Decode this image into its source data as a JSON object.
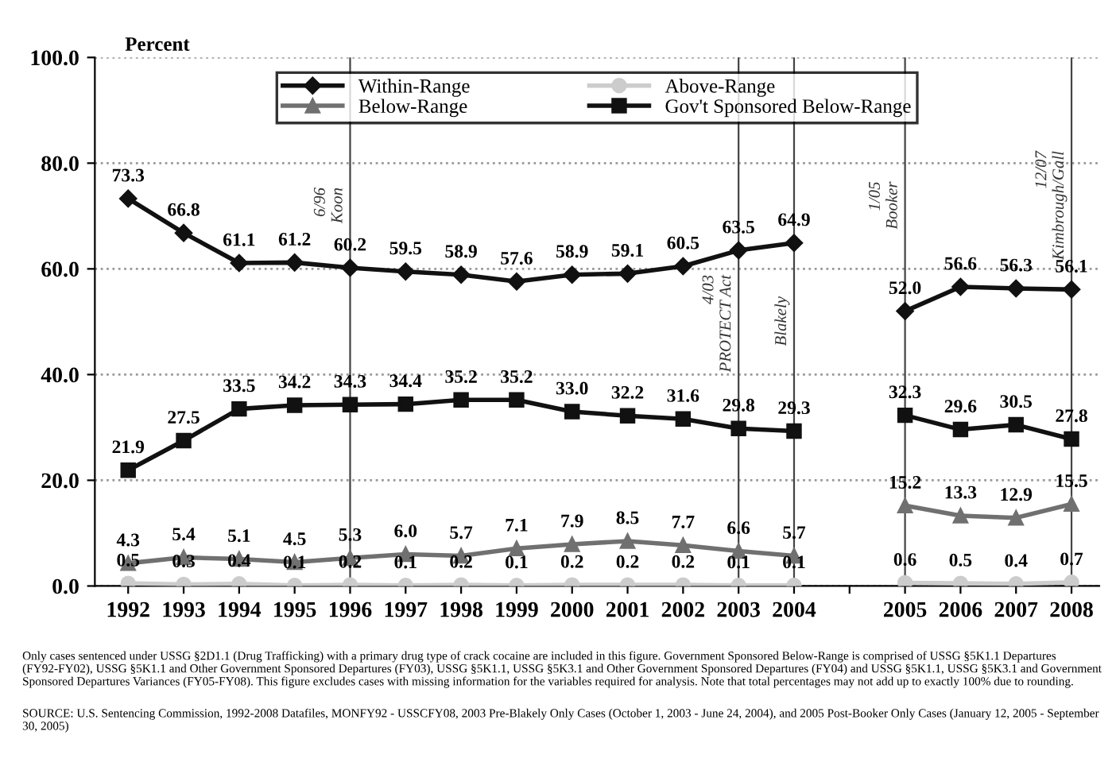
{
  "chart_data": {
    "type": "line",
    "ylabel": "Percent",
    "categories": [
      "1992",
      "1993",
      "1994",
      "1995",
      "1996",
      "1997",
      "1998",
      "1999",
      "2000",
      "2001",
      "2002",
      "2003",
      "2004",
      null,
      "2005",
      "2006",
      "2007",
      "2008"
    ],
    "series": [
      {
        "name": "Within-Range",
        "color": "#111111",
        "marker": "diamond",
        "values": [
          73.3,
          66.8,
          61.1,
          61.2,
          60.2,
          59.5,
          58.9,
          57.6,
          58.9,
          59.1,
          60.5,
          63.5,
          64.9,
          null,
          52.0,
          56.6,
          56.3,
          56.1
        ],
        "value_labels": [
          "73.3",
          "66.8",
          "61.1",
          "61.2",
          "60.2",
          "59.5",
          "58.9",
          "57.6",
          "58.9",
          "59.1",
          "60.5",
          "63.5",
          "64.9",
          null,
          "52.0",
          "56.6",
          "56.3",
          "56.1"
        ]
      },
      {
        "name": "Below-Range",
        "color": "#707070",
        "marker": "triangle",
        "values": [
          4.3,
          5.4,
          5.1,
          4.5,
          5.3,
          6.0,
          5.7,
          7.1,
          7.9,
          8.5,
          7.7,
          6.6,
          5.7,
          null,
          15.2,
          13.3,
          12.9,
          15.5
        ],
        "value_labels": [
          "4.3",
          "5.4",
          "5.1",
          "4.5",
          "5.3",
          "6.0",
          "5.7",
          "7.1",
          "7.9",
          "8.5",
          "7.7",
          "6.6",
          "5.7",
          null,
          "15.2",
          "13.3",
          "12.9",
          "15.5"
        ]
      },
      {
        "name": "Above-Range",
        "color": "#cccccc",
        "marker": "circle",
        "values": [
          0.5,
          0.3,
          0.4,
          0.1,
          0.2,
          0.1,
          0.2,
          0.1,
          0.2,
          0.2,
          0.2,
          0.1,
          0.1,
          null,
          0.6,
          0.5,
          0.4,
          0.7
        ],
        "value_labels": [
          "0.5",
          "0.3",
          "0.4",
          "0.1",
          "0.2",
          "0.1",
          "0.2",
          "0.1",
          "0.2",
          "0.2",
          "0.2",
          "0.1",
          "0.1",
          null,
          "0.6",
          "0.5",
          "0.4",
          "0.7"
        ]
      },
      {
        "name": "Gov't Sponsored Below-Range",
        "color": "#111111",
        "marker": "square",
        "values": [
          21.9,
          27.5,
          33.5,
          34.2,
          34.3,
          34.4,
          35.2,
          35.2,
          33.0,
          32.2,
          31.6,
          29.8,
          29.3,
          null,
          32.3,
          29.6,
          30.5,
          27.8
        ],
        "value_labels": [
          "21.9",
          "27.5",
          "33.5",
          "34.2",
          "34.3",
          "34.4",
          "35.2",
          "35.2",
          "33.0",
          "32.2",
          "31.6",
          "29.8",
          "29.3",
          null,
          "32.3",
          "29.6",
          "30.5",
          "27.8"
        ]
      }
    ],
    "ylim": [
      0,
      100
    ],
    "yticks": [
      {
        "value": 0,
        "label": "0.0"
      },
      {
        "value": 20,
        "label": "20.0"
      },
      {
        "value": 40,
        "label": "40.0"
      },
      {
        "value": 60,
        "label": "60.0"
      },
      {
        "value": 80,
        "label": "80.0"
      },
      {
        "value": 100,
        "label": "100.0"
      }
    ],
    "grid": "y",
    "legend": "top",
    "ref_lines": [
      {
        "axis": "x",
        "value": "1996",
        "label": "6/96\nKoon"
      },
      {
        "axis": "x",
        "value": "2003",
        "label": "4/03\nPROTECT Act"
      },
      {
        "axis": "x",
        "value": "2004",
        "label": "Blakely"
      },
      {
        "axis": "x",
        "value": "2005",
        "label": "1/05\nBooker"
      },
      {
        "axis": "x",
        "value": "2008",
        "label": "12/07\nKimbrough/Gall"
      }
    ],
    "annotations": [
      "Only cases sentenced under USSG §2D1.1 (Drug Trafficking) with a primary drug type of crack cocaine are included in this figure. Government Sponsored Below-Range is comprised of USSG §5K1.1 Departures (FY92-FY02), USSG §5K1.1 and Other Government Sponsored Departures (FY03), USSG §5K1.1, USSG §5K3.1 and Other Government Sponsored Departures (FY04) and USSG §5K1.1, USSG §5K3.1 and Government Sponsored Departures Variances (FY05-FY08). This figure excludes cases with missing information for the variables required for analysis. Note that total percentages may not add up to exactly 100% due to rounding.",
      "SOURCE: U.S. Sentencing Commission, 1992-2008 Datafiles, MONFY92 - USSCFY08, 2003 Pre-Blakely Only Cases (October 1, 2003 - June 24, 2004), and 2005 Post-Booker Only Cases (January 12, 2005 - September 30, 2005)"
    ]
  }
}
